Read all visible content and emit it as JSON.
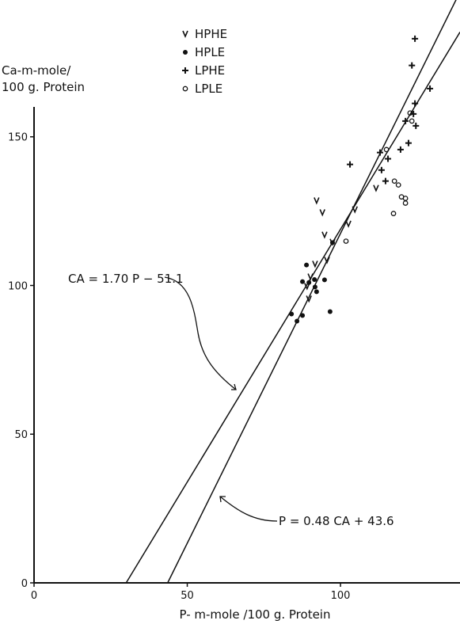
{
  "chart_data": {
    "type": "scatter",
    "y_label_lines": [
      "Ca-m-mole/",
      "100 g. Protein"
    ],
    "x_label": "P- m-mole /100 g. Protein",
    "xlim": [
      0,
      139
    ],
    "ylim": [
      0,
      196
    ],
    "xticks": [
      0,
      50,
      100
    ],
    "yticks": [
      0,
      50,
      100,
      150
    ],
    "series": [
      {
        "name": "HPHE",
        "marker": "v",
        "x": [
          92.2,
          94.1,
          94.8,
          95.6,
          91.7,
          90.2,
          89.7,
          97.4,
          102.6,
          104.7,
          111.6,
          89.1
        ],
        "values": [
          128.5,
          124.5,
          117,
          108.5,
          107.2,
          102.9,
          95.5,
          114.6,
          120.7,
          125.5,
          132.7,
          99.7
        ]
      },
      {
        "name": "HPLE",
        "marker": "dot",
        "x": [
          84,
          85.8,
          87.6,
          88.9,
          87.6,
          89.7,
          91.5,
          91.7,
          92.2,
          94.8,
          96.6,
          97.4
        ],
        "values": [
          90.4,
          88,
          89.9,
          106.9,
          101.3,
          101,
          102,
          99.5,
          97.9,
          101.9,
          91.2,
          114.4
        ]
      },
      {
        "name": "LPHE",
        "marker": "plus",
        "x": [
          103.1,
          112.9,
          113.4,
          115.5,
          114.7,
          124.3,
          123.3,
          129.2,
          124.3,
          123.8,
          121.2,
          124.6,
          122.2,
          119.6
        ],
        "values": [
          140.7,
          144.7,
          138.8,
          142.6,
          135.1,
          183,
          174,
          166.2,
          161.2,
          157.7,
          155.3,
          153.7,
          147.9,
          145.7
        ]
      },
      {
        "name": "LPLE",
        "marker": "circle",
        "x": [
          115,
          117.6,
          118.9,
          119.9,
          121.2,
          121.2,
          117.3,
          101.8,
          122.7,
          123.3
        ],
        "values": [
          145.7,
          135.1,
          133.8,
          129.8,
          129.3,
          127.7,
          124.2,
          114.9,
          158,
          155.3
        ]
      }
    ],
    "lines": [
      {
        "label": "CA = 1.70 P − 51.1",
        "coef": 1.7,
        "const": -51.1,
        "dependent": "y"
      },
      {
        "label": "P = 0.48 CA + 43.6",
        "coef": 0.48,
        "const": 43.6,
        "dependent": "x"
      }
    ]
  }
}
